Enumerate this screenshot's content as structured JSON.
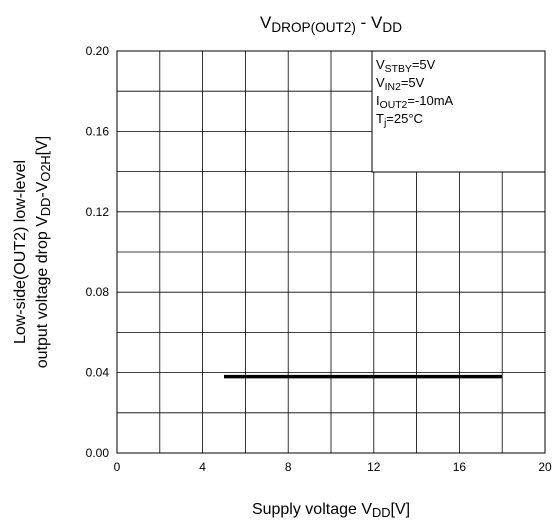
{
  "chart_data": {
    "type": "line",
    "title": [
      {
        "text": "V"
      },
      {
        "text": "DROP(OUT2)",
        "sub": true
      },
      {
        "text": " - V"
      },
      {
        "text": "DD",
        "sub": true
      }
    ],
    "x_label": [
      {
        "text": "Supply voltage V"
      },
      {
        "text": "DD",
        "sub": true
      },
      {
        "text": "[V]"
      }
    ],
    "y_label": [
      [
        {
          "text": "Low-side(OUT2) low-level"
        }
      ],
      [
        {
          "text": "output voltage drop V"
        },
        {
          "text": "DD",
          "sub": true
        },
        {
          "text": "-V"
        },
        {
          "text": "O2H",
          "sub": true
        },
        {
          "text": "[V]"
        }
      ]
    ],
    "annotations": [
      [
        {
          "text": "V"
        },
        {
          "text": "STBY",
          "sub": true
        },
        {
          "text": "=5V"
        }
      ],
      [
        {
          "text": "V"
        },
        {
          "text": "IN2",
          "sub": true
        },
        {
          "text": "=5V"
        }
      ],
      [
        {
          "text": "I"
        },
        {
          "text": "OUT2",
          "sub": true
        },
        {
          "text": "=-10mA"
        }
      ],
      [
        {
          "text": "T"
        },
        {
          "text": "j",
          "sub": true
        },
        {
          "text": "=25°C"
        }
      ]
    ],
    "series": [
      {
        "color": "#000000",
        "x": [
          5,
          18
        ],
        "values": [
          0.038,
          0.038
        ]
      }
    ],
    "xlim": [
      0,
      20
    ],
    "xticks": [
      0,
      4,
      8,
      12,
      16,
      20
    ],
    "xminor_ticks": [
      2,
      6,
      10,
      14,
      18
    ],
    "ylim": [
      0,
      0.2
    ],
    "yticks": [
      {
        "value": 0,
        "label": "0.00"
      },
      0.04,
      0.08,
      0.12,
      0.16,
      {
        "value": 0.2,
        "label": "0.20"
      }
    ],
    "yminor_ticks": [
      0.02,
      0.06,
      0.1,
      0.14,
      0.18
    ],
    "grid": true
  }
}
